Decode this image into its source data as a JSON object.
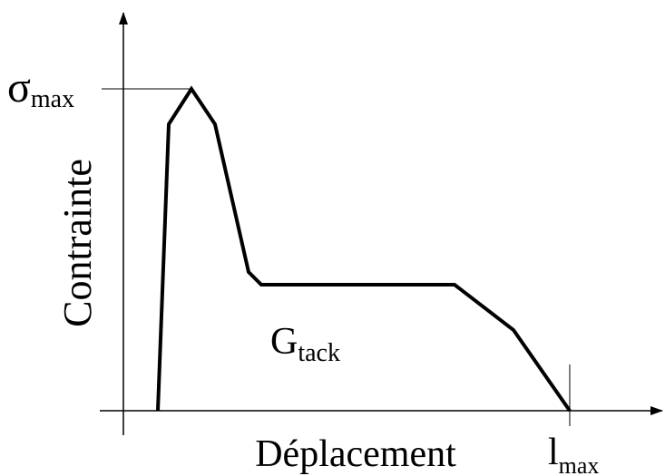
{
  "axes": {
    "y_label": "Contrainte",
    "x_label": "Déplacement"
  },
  "annotations": {
    "sigma_max": {
      "symbol": "σ",
      "subscript": "max"
    },
    "g_tack": {
      "symbol": "G",
      "subscript": "tack"
    },
    "l_max": {
      "symbol": "l",
      "subscript": "max"
    }
  }
}
